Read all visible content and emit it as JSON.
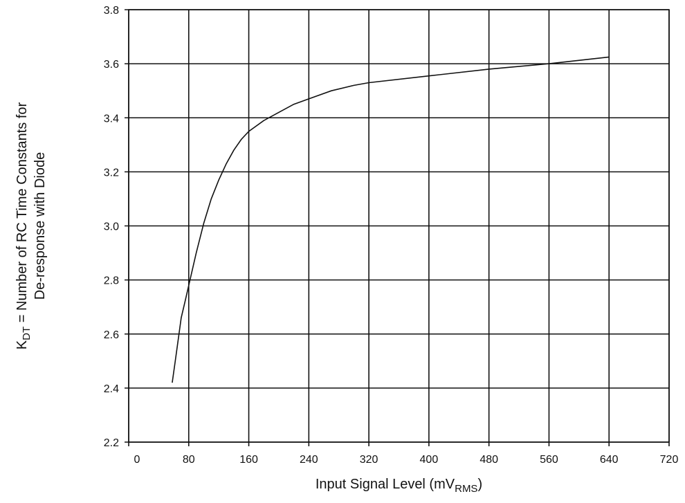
{
  "chart_data": {
    "type": "line",
    "xlabel": "Input Signal Level (mV",
    "xlabel_sub": "RMS",
    "xlabel_end": ")",
    "ylabel_line1_pre": "K",
    "ylabel_line1_sub": "DT",
    "ylabel_line1_post": " = Number of RC Time Constants for",
    "ylabel_line2": "De-response with Diode",
    "xlim": [
      0,
      720
    ],
    "ylim": [
      2.2,
      3.8
    ],
    "x_ticks": [
      0,
      80,
      160,
      240,
      320,
      400,
      480,
      560,
      640,
      720
    ],
    "x_tick_labels": [
      "0",
      "80",
      "160",
      "240",
      "320",
      "400",
      "480",
      "560",
      "640",
      "720"
    ],
    "y_ticks": [
      2.2,
      2.4,
      2.6,
      2.8,
      3.0,
      3.2,
      3.4,
      3.6,
      3.8
    ],
    "y_tick_labels": [
      "2.2",
      "2.4",
      "2.6",
      "2.8",
      "3.0",
      "3.2",
      "3.4",
      "3.6",
      "3.8"
    ],
    "grid": true,
    "series": [
      {
        "x": [
          58,
          62,
          66,
          70,
          75,
          80,
          90,
          100,
          110,
          120,
          130,
          140,
          150,
          160,
          180,
          200,
          220,
          240,
          270,
          300,
          320,
          400,
          480,
          560,
          640
        ],
        "y": [
          2.42,
          2.5,
          2.58,
          2.66,
          2.72,
          2.78,
          2.9,
          3.01,
          3.1,
          3.17,
          3.23,
          3.28,
          3.32,
          3.35,
          3.39,
          3.42,
          3.45,
          3.47,
          3.5,
          3.52,
          3.53,
          3.555,
          3.58,
          3.6,
          3.625
        ]
      }
    ]
  }
}
